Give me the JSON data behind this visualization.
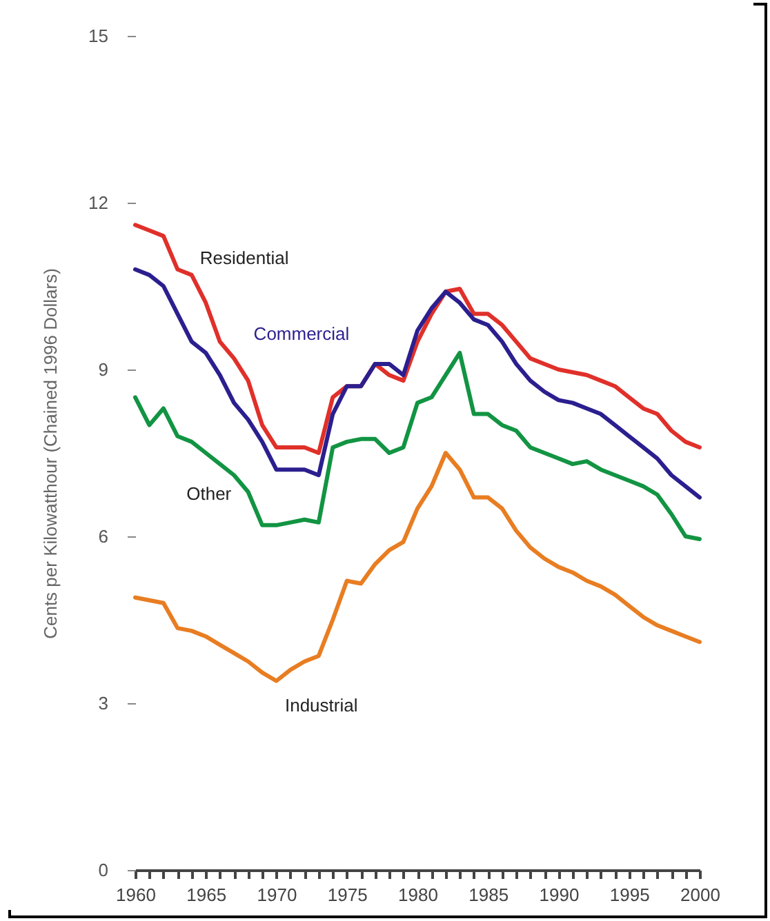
{
  "chart_data": {
    "type": "line",
    "ylabel": "Cents per Kilowatthour (Chained 1996 Dollars)",
    "x": [
      1960,
      1961,
      1962,
      1963,
      1964,
      1965,
      1966,
      1967,
      1968,
      1969,
      1970,
      1971,
      1972,
      1973,
      1974,
      1975,
      1976,
      1977,
      1978,
      1979,
      1980,
      1981,
      1982,
      1983,
      1984,
      1985,
      1986,
      1987,
      1988,
      1989,
      1990,
      1991,
      1992,
      1993,
      1994,
      1995,
      1996,
      1997,
      1998,
      1999,
      2000
    ],
    "series": [
      {
        "name": "Residential",
        "color": "#e0302a",
        "values": [
          11.6,
          11.5,
          11.4,
          10.8,
          10.7,
          10.2,
          9.5,
          9.2,
          8.8,
          8.0,
          7.6,
          7.6,
          7.6,
          7.5,
          8.5,
          8.7,
          8.7,
          9.1,
          8.9,
          8.8,
          9.5,
          10.0,
          10.4,
          10.45,
          10.0,
          10.0,
          9.8,
          9.5,
          9.2,
          9.1,
          9.0,
          8.95,
          8.9,
          8.8,
          8.7,
          8.5,
          8.3,
          8.2,
          7.9,
          7.7,
          7.6
        ]
      },
      {
        "name": "Commercial",
        "color": "#2b1f8f",
        "values": [
          10.8,
          10.7,
          10.5,
          10.0,
          9.5,
          9.3,
          8.9,
          8.4,
          8.1,
          7.7,
          7.2,
          7.2,
          7.2,
          7.1,
          8.2,
          8.7,
          8.7,
          9.1,
          9.1,
          8.9,
          9.7,
          10.1,
          10.4,
          10.2,
          9.9,
          9.8,
          9.5,
          9.1,
          8.8,
          8.6,
          8.45,
          8.4,
          8.3,
          8.2,
          8.0,
          7.8,
          7.6,
          7.4,
          7.1,
          6.9,
          6.7
        ]
      },
      {
        "name": "Other",
        "color": "#129443",
        "values": [
          8.5,
          8.0,
          8.3,
          7.8,
          7.7,
          7.5,
          7.3,
          7.1,
          6.8,
          6.2,
          6.2,
          6.25,
          6.3,
          6.25,
          7.6,
          7.7,
          7.75,
          7.75,
          7.5,
          7.6,
          8.4,
          8.5,
          8.9,
          9.3,
          8.2,
          8.2,
          8.0,
          7.9,
          7.6,
          7.5,
          7.4,
          7.3,
          7.35,
          7.2,
          7.1,
          7.0,
          6.9,
          6.75,
          6.4,
          6.0,
          5.95
        ]
      },
      {
        "name": "Industrial",
        "color": "#e87d22",
        "values": [
          4.9,
          4.85,
          4.8,
          4.35,
          4.3,
          4.2,
          4.05,
          3.9,
          3.75,
          3.55,
          3.4,
          3.6,
          3.75,
          3.85,
          4.5,
          5.2,
          5.15,
          5.5,
          5.75,
          5.9,
          6.5,
          6.9,
          7.5,
          7.2,
          6.7,
          6.7,
          6.5,
          6.1,
          5.8,
          5.6,
          5.45,
          5.35,
          5.2,
          5.1,
          4.95,
          4.75,
          4.55,
          4.4,
          4.3,
          4.2,
          4.1
        ]
      }
    ],
    "xlim": [
      1960,
      2000
    ],
    "xticks": [
      1960,
      {
        "value": 1961,
        "label": null
      },
      {
        "value": 1962,
        "label": null
      },
      {
        "value": 1963,
        "label": null
      },
      {
        "value": 1964,
        "label": null
      },
      1965,
      {
        "value": 1966,
        "label": null
      },
      {
        "value": 1967,
        "label": null
      },
      {
        "value": 1968,
        "label": null
      },
      {
        "value": 1969,
        "label": null
      },
      1970,
      {
        "value": 1971,
        "label": null
      },
      {
        "value": 1972,
        "label": null
      },
      {
        "value": 1973,
        "label": null
      },
      {
        "value": 1974,
        "label": null
      },
      1975,
      {
        "value": 1976,
        "label": null
      },
      {
        "value": 1977,
        "label": null
      },
      {
        "value": 1978,
        "label": null
      },
      {
        "value": 1979,
        "label": null
      },
      1980,
      {
        "value": 1981,
        "label": null
      },
      {
        "value": 1982,
        "label": null
      },
      {
        "value": 1983,
        "label": null
      },
      {
        "value": 1984,
        "label": null
      },
      1985,
      {
        "value": 1986,
        "label": null
      },
      {
        "value": 1987,
        "label": null
      },
      {
        "value": 1988,
        "label": null
      },
      {
        "value": 1989,
        "label": null
      },
      1990,
      {
        "value": 1991,
        "label": null
      },
      {
        "value": 1992,
        "label": null
      },
      {
        "value": 1993,
        "label": null
      },
      {
        "value": 1994,
        "label": null
      },
      1995,
      {
        "value": 1996,
        "label": null
      },
      {
        "value": 1997,
        "label": null
      },
      {
        "value": 1998,
        "label": null
      },
      {
        "value": 1999,
        "label": null
      },
      2000
    ],
    "ylim": [
      0,
      15
    ],
    "yticks": [
      0,
      3,
      6,
      9,
      12,
      15
    ],
    "legend": false,
    "line_style": "solid"
  }
}
